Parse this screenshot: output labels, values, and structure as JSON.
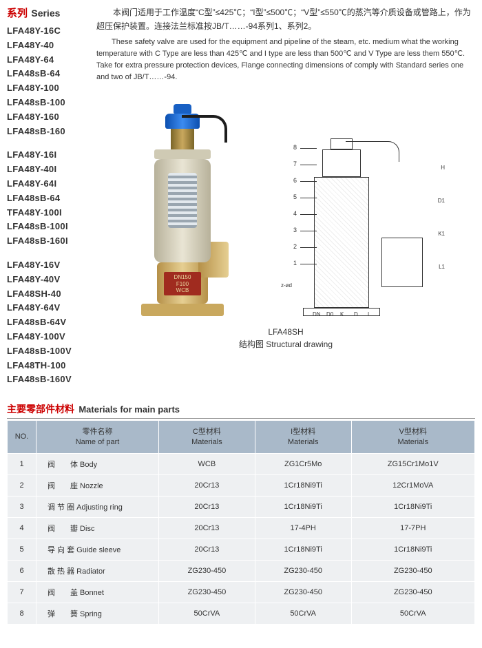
{
  "series_heading": {
    "zh": "系列",
    "en": "Series"
  },
  "series_groups": [
    [
      "LFA48Y-16C",
      "LFA48Y-40",
      "LFA48Y-64",
      "LFA48sB-64",
      "LFA48Y-100",
      "LFA48sB-100",
      "LFA48Y-160",
      "LFA48sB-160"
    ],
    [
      "LFA48Y-16I",
      "LFA48Y-40I",
      "LFA48Y-64I",
      "LFA48sB-64",
      "TFA48Y-100I",
      "LFA48sB-100I",
      "LFA48sB-160I"
    ],
    [
      "LFA48Y-16V",
      "LFA48Y-40V",
      "LFA48SH-40",
      "LFA48Y-64V",
      "LFA48sB-64V",
      "LFA48Y-100V",
      "LFA48sB-100V",
      "LFA48TH-100",
      "LFA48sB-160V"
    ]
  ],
  "desc_zh": "本阀门适用于工作温度“C型”≤425℃；“I型”≤500℃；“V型”≤550℃的蒸汽等介质设备或管路上，作为超压保护装置。连接法兰标准按JB/T……-94系列1、系列2。",
  "desc_en": "These safety valve are used for the equipment and pipeline of the steam, etc. medium what the working temperature with C Type are less than 425℃ and I type are less than 500℃ and V Type are less them 550℃. Take for extra pressure protection devices, Flange connecting dimensions of comply with Standard series one and two of JB/T……-94.",
  "photo_label": {
    "l1": "DN150",
    "l2": "F100",
    "l3": "WCB"
  },
  "drawing": {
    "callouts": [
      "8",
      "7",
      "6",
      "5",
      "4",
      "3",
      "2",
      "1"
    ],
    "dims_right": [
      "H",
      "D1",
      "K1",
      "L1"
    ],
    "dims_bottom": [
      "DN",
      "D0",
      "K",
      "D",
      "L"
    ],
    "dims_left": "z-ød"
  },
  "caption": {
    "model": "LFA48SH",
    "line": "结构图 Structural drawing"
  },
  "materials_heading": {
    "zh": "主要零部件材料",
    "en": "Materials for main parts"
  },
  "table": {
    "header": {
      "no": "NO.",
      "name_zh": "零件名称",
      "name_en": "Name of part",
      "c_zh": "C型材料",
      "c_en": "Materials",
      "i_zh": "I型材料",
      "i_en": "Materials",
      "v_zh": "V型材料",
      "v_en": "Materials"
    },
    "rows": [
      {
        "no": "1",
        "name": "阀　　体 Body",
        "c": "WCB",
        "i": "ZG1Cr5Mo",
        "v": "ZG15Cr1Mo1V"
      },
      {
        "no": "2",
        "name": "阀　　座 Nozzle",
        "c": "20Cr13",
        "i": "1Cr18Ni9Ti",
        "v": "12Cr1MoVA"
      },
      {
        "no": "3",
        "name": "调 节 圈 Adjusting ring",
        "c": "20Cr13",
        "i": "1Cr18Ni9Ti",
        "v": "1Cr18Ni9Ti"
      },
      {
        "no": "4",
        "name": "阀　　瓣 Disc",
        "c": "20Cr13",
        "i": "17-4PH",
        "v": "17-7PH"
      },
      {
        "no": "5",
        "name": "导 向 套 Guide sleeve",
        "c": "20Cr13",
        "i": "1Cr18Ni9Ti",
        "v": "1Cr18Ni9Ti"
      },
      {
        "no": "6",
        "name": "散 热 器 Radiator",
        "c": "ZG230-450",
        "i": "ZG230-450",
        "v": "ZG230-450"
      },
      {
        "no": "7",
        "name": "阀　　盖 Bonnet",
        "c": "ZG230-450",
        "i": "ZG230-450",
        "v": "ZG230-450"
      },
      {
        "no": "8",
        "name": "弹　　簧 Spring",
        "c": "50CrVA",
        "i": "50CrVA",
        "v": "50CrVA"
      }
    ]
  },
  "colors": {
    "accent": "#c00",
    "table_header_bg": "#a9b9c9",
    "table_cell_bg": "#eef0f2"
  }
}
